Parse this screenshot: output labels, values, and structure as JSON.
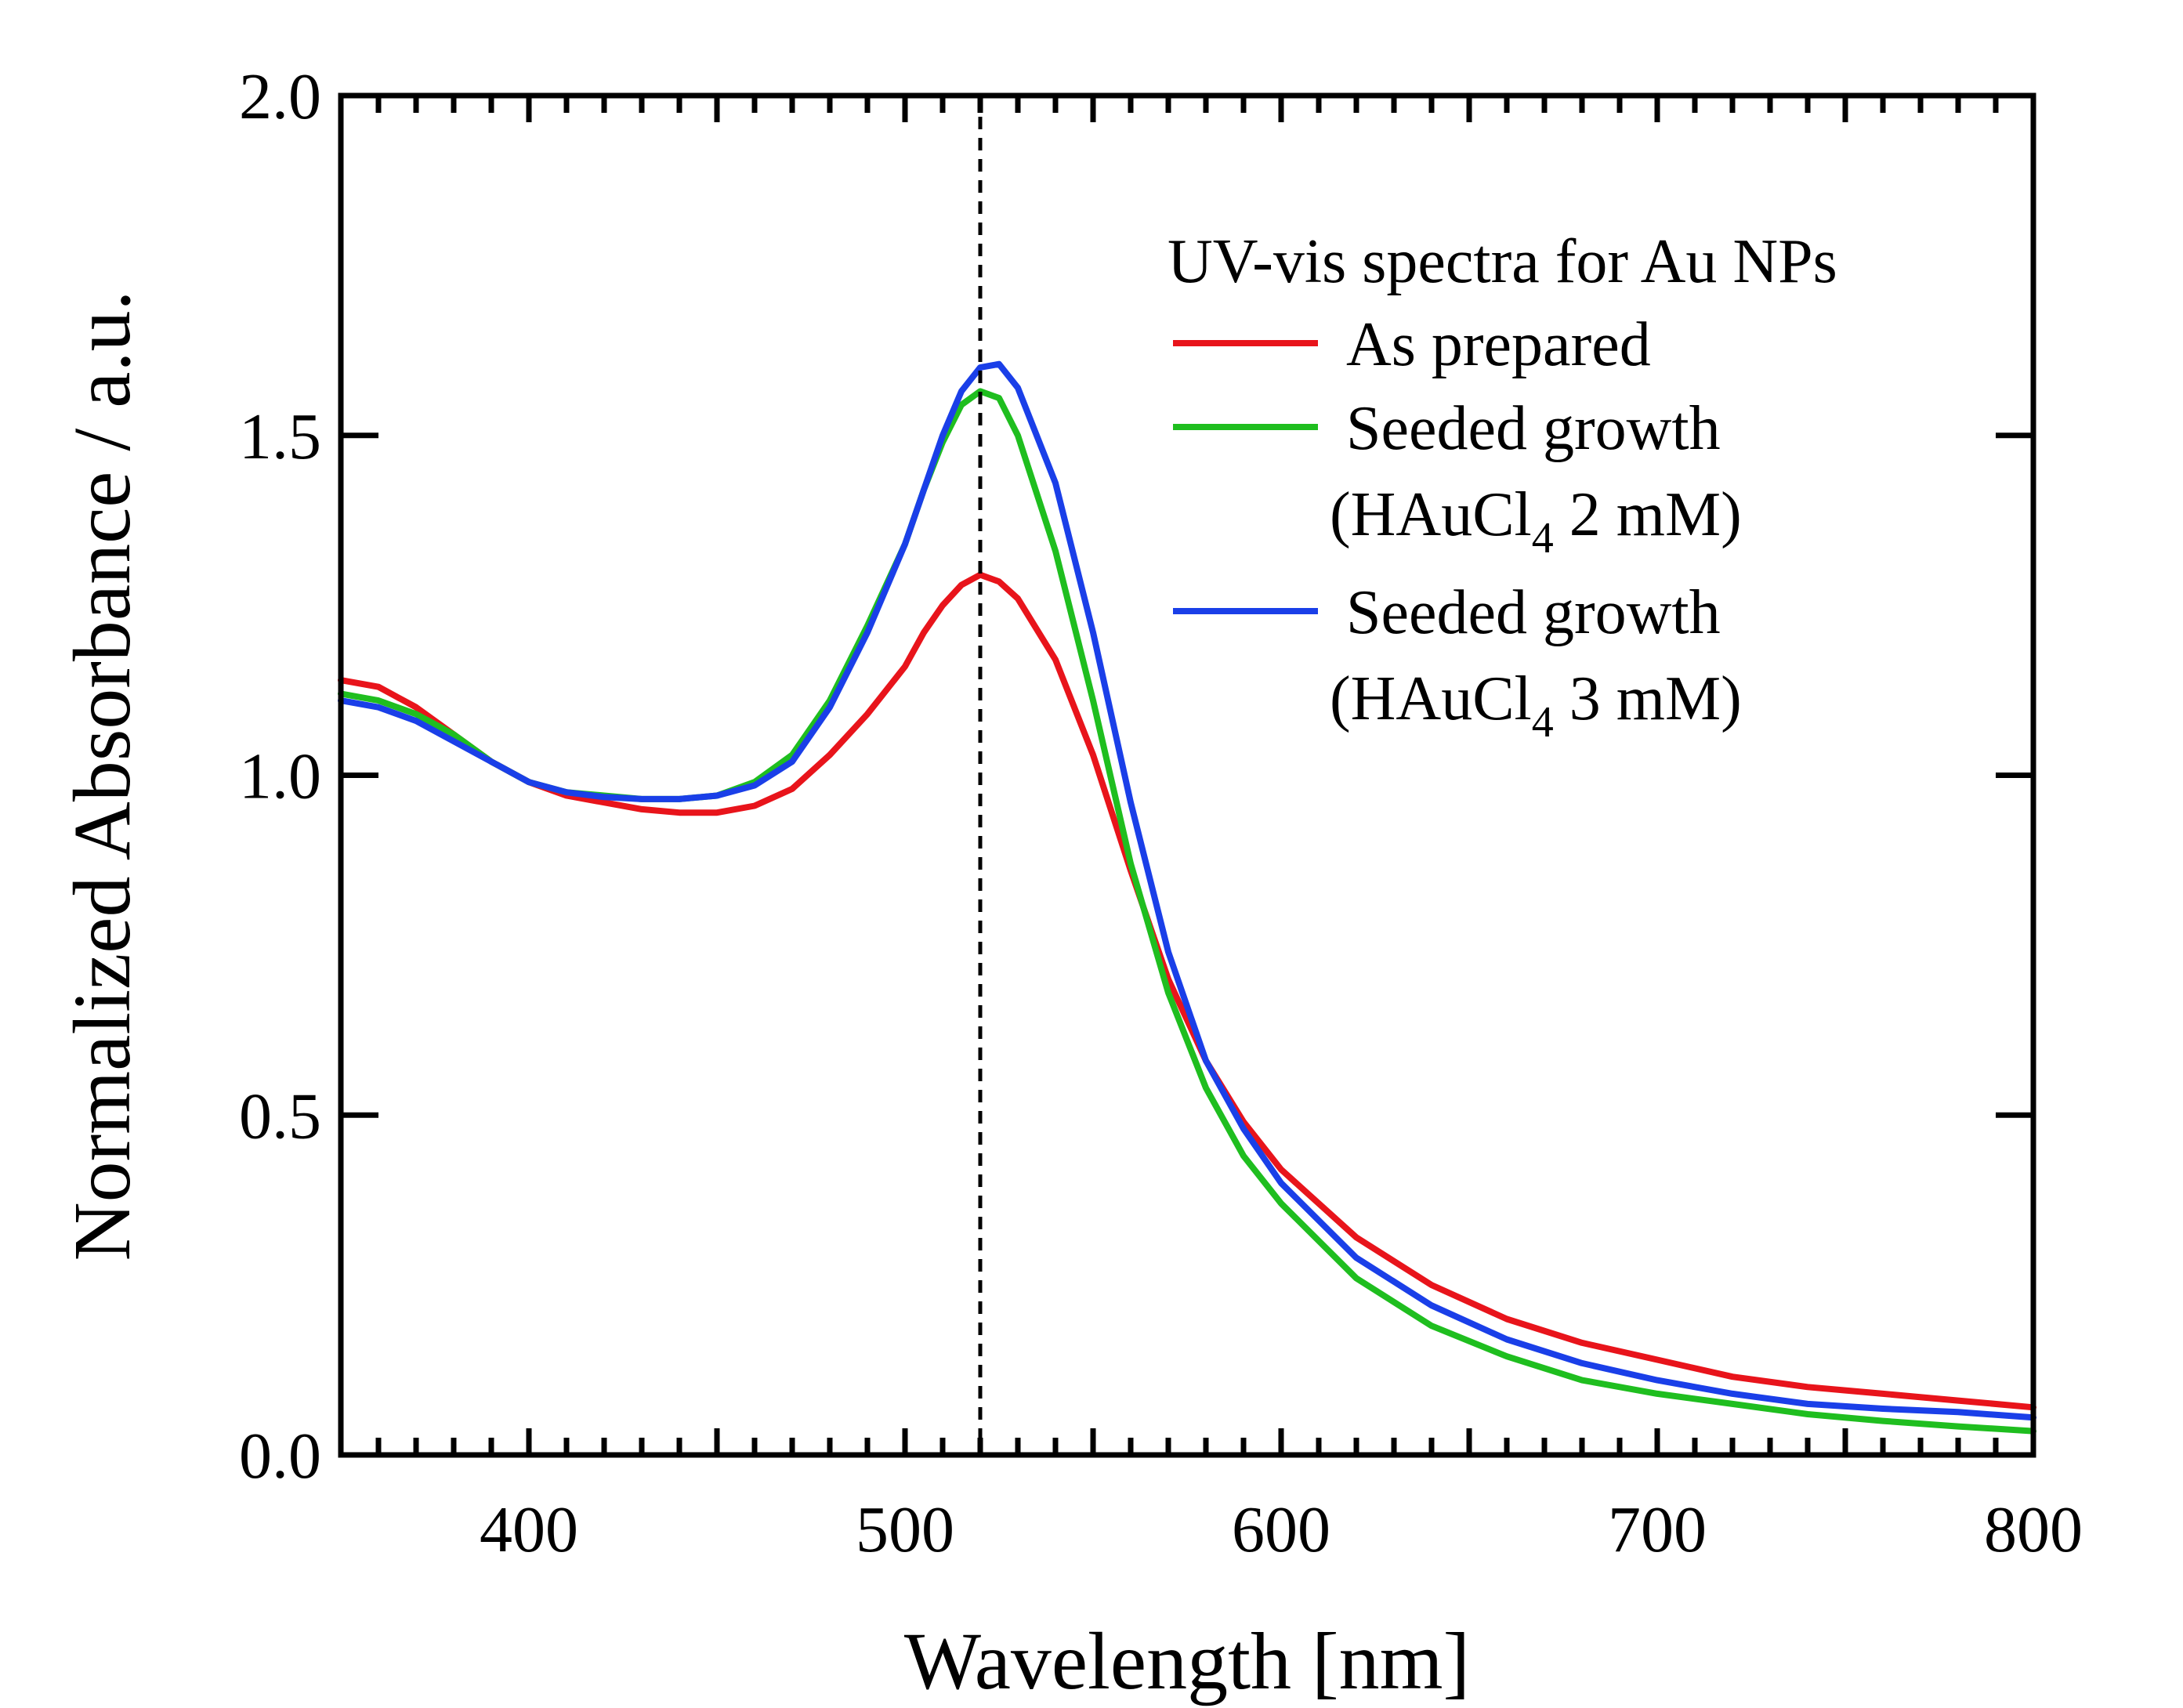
{
  "chart_data": {
    "type": "line",
    "xlabel": "Wavelength [nm]",
    "ylabel": "Normalized Absorbance / a.u.",
    "xlim": [
      350,
      800
    ],
    "ylim": [
      0.0,
      2.0
    ],
    "x_ticks": [
      400,
      500,
      600,
      700,
      800
    ],
    "y_ticks": [
      "0.0",
      "0.5",
      "1.0",
      "1.5",
      "2.0"
    ],
    "grid": false,
    "legend": {
      "title": "UV-vis spectra for Au NPs",
      "placement": "top-right",
      "entries": [
        {
          "line1": "As prepared",
          "line2": ""
        },
        {
          "line1": "Seeded growth",
          "line2": "(HAuCl",
          "sub": "4",
          "line2_rest": " 2 mM)"
        },
        {
          "line1": "Seeded growth",
          "line2": "(HAuCl",
          "sub": "4",
          "line2_rest": " 3 mM)"
        }
      ]
    },
    "reference_line": {
      "x": 520,
      "style": "dashed",
      "color": "#000000"
    },
    "series": [
      {
        "name": "As prepared",
        "color": "#e8141b",
        "x": [
          350,
          360,
          370,
          380,
          390,
          400,
          410,
          420,
          430,
          440,
          450,
          460,
          470,
          480,
          490,
          500,
          505,
          510,
          515,
          520,
          525,
          530,
          540,
          550,
          560,
          570,
          580,
          590,
          600,
          620,
          640,
          660,
          680,
          700,
          720,
          740,
          760,
          780,
          800
        ],
        "values": [
          1.14,
          1.13,
          1.1,
          1.06,
          1.02,
          0.99,
          0.97,
          0.96,
          0.95,
          0.945,
          0.945,
          0.955,
          0.98,
          1.03,
          1.09,
          1.16,
          1.21,
          1.25,
          1.28,
          1.295,
          1.285,
          1.26,
          1.17,
          1.03,
          0.86,
          0.7,
          0.58,
          0.49,
          0.42,
          0.32,
          0.25,
          0.2,
          0.165,
          0.14,
          0.115,
          0.1,
          0.09,
          0.08,
          0.07
        ]
      },
      {
        "name": "Seeded growth (HAuCl4 2 mM)",
        "color": "#1fbe1f",
        "x": [
          350,
          360,
          370,
          380,
          390,
          400,
          410,
          420,
          430,
          440,
          450,
          460,
          470,
          480,
          490,
          500,
          505,
          510,
          515,
          520,
          525,
          530,
          540,
          550,
          560,
          570,
          580,
          590,
          600,
          620,
          640,
          660,
          680,
          700,
          720,
          740,
          760,
          780,
          800
        ],
        "values": [
          1.12,
          1.11,
          1.09,
          1.06,
          1.02,
          0.99,
          0.975,
          0.97,
          0.965,
          0.965,
          0.97,
          0.99,
          1.03,
          1.11,
          1.22,
          1.34,
          1.42,
          1.49,
          1.545,
          1.565,
          1.555,
          1.5,
          1.33,
          1.11,
          0.87,
          0.68,
          0.54,
          0.44,
          0.37,
          0.26,
          0.19,
          0.145,
          0.11,
          0.09,
          0.075,
          0.06,
          0.05,
          0.042,
          0.035
        ]
      },
      {
        "name": "Seeded growth (HAuCl4 3 mM)",
        "color": "#1a3fe8",
        "x": [
          350,
          360,
          370,
          380,
          390,
          400,
          410,
          420,
          430,
          440,
          450,
          460,
          470,
          480,
          490,
          500,
          505,
          510,
          515,
          520,
          525,
          530,
          540,
          550,
          560,
          570,
          580,
          590,
          600,
          620,
          640,
          660,
          680,
          700,
          720,
          740,
          760,
          780,
          800
        ],
        "values": [
          1.11,
          1.1,
          1.08,
          1.05,
          1.02,
          0.99,
          0.975,
          0.968,
          0.965,
          0.965,
          0.97,
          0.985,
          1.02,
          1.1,
          1.21,
          1.34,
          1.42,
          1.5,
          1.565,
          1.6,
          1.605,
          1.57,
          1.43,
          1.21,
          0.96,
          0.74,
          0.58,
          0.48,
          0.4,
          0.29,
          0.22,
          0.17,
          0.135,
          0.11,
          0.09,
          0.075,
          0.068,
          0.063,
          0.055
        ]
      }
    ]
  }
}
